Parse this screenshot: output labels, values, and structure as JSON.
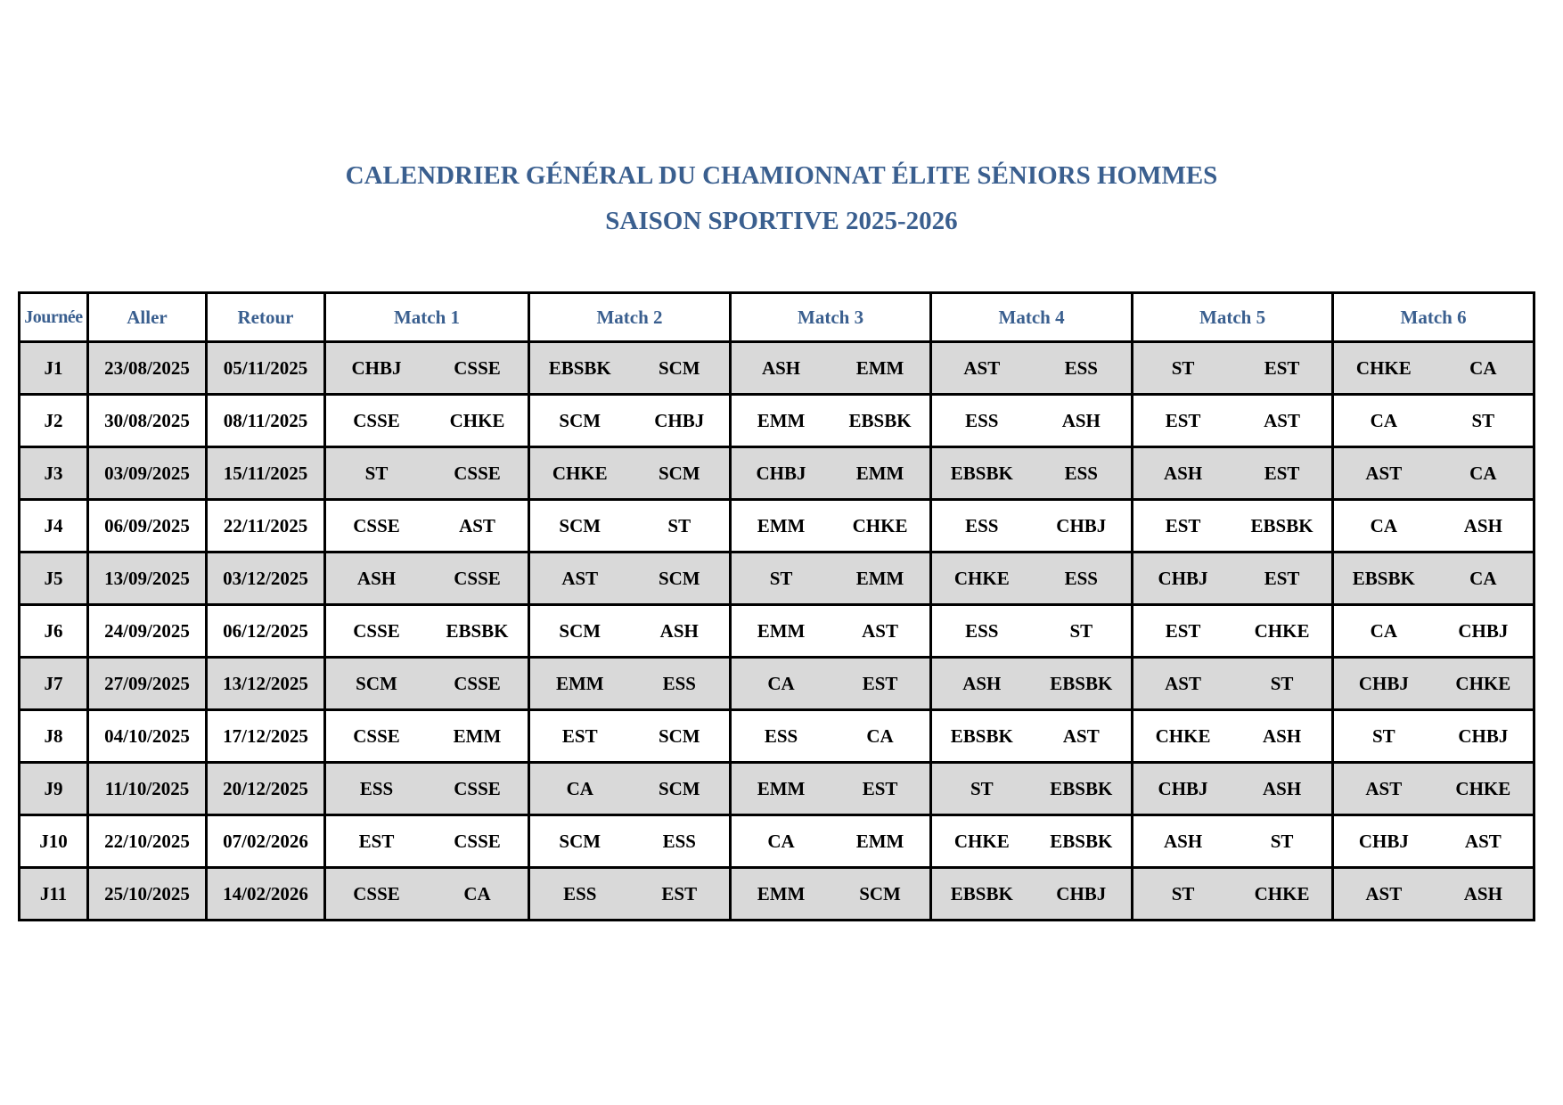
{
  "title": {
    "line1": "CALENDRIER GÉNÉRAL DU CHAMIONNAT ÉLITE SÉNIORS HOMMES",
    "line2": "SAISON SPORTIVE 2025-2026"
  },
  "headers": [
    "Journée",
    "Aller",
    "Retour",
    "Match 1",
    "Match 2",
    "Match 3",
    "Match 4",
    "Match 5",
    "Match 6"
  ],
  "rows": [
    {
      "j": "J1",
      "aller": "23/08/2025",
      "retour": "05/11/2025",
      "teams": [
        "CHBJ",
        "CSSE",
        "EBSBK",
        "SCM",
        "ASH",
        "EMM",
        "AST",
        "ESS",
        "ST",
        "EST",
        "CHKE",
        "CA"
      ]
    },
    {
      "j": "J2",
      "aller": "30/08/2025",
      "retour": "08/11/2025",
      "teams": [
        "CSSE",
        "CHKE",
        "SCM",
        "CHBJ",
        "EMM",
        "EBSBK",
        "ESS",
        "ASH",
        "EST",
        "AST",
        "CA",
        "ST"
      ]
    },
    {
      "j": "J3",
      "aller": "03/09/2025",
      "retour": "15/11/2025",
      "teams": [
        "ST",
        "CSSE",
        "CHKE",
        "SCM",
        "CHBJ",
        "EMM",
        "EBSBK",
        "ESS",
        "ASH",
        "EST",
        "AST",
        "CA"
      ]
    },
    {
      "j": "J4",
      "aller": "06/09/2025",
      "retour": "22/11/2025",
      "teams": [
        "CSSE",
        "AST",
        "SCM",
        "ST",
        "EMM",
        "CHKE",
        "ESS",
        "CHBJ",
        "EST",
        "EBSBK",
        "CA",
        "ASH"
      ]
    },
    {
      "j": "J5",
      "aller": "13/09/2025",
      "retour": "03/12/2025",
      "teams": [
        "ASH",
        "CSSE",
        "AST",
        "SCM",
        "ST",
        "EMM",
        "CHKE",
        "ESS",
        "CHBJ",
        "EST",
        "EBSBK",
        "CA"
      ]
    },
    {
      "j": "J6",
      "aller": "24/09/2025",
      "retour": "06/12/2025",
      "teams": [
        "CSSE",
        "EBSBK",
        "SCM",
        "ASH",
        "EMM",
        "AST",
        "ESS",
        "ST",
        "EST",
        "CHKE",
        "CA",
        "CHBJ"
      ]
    },
    {
      "j": "J7",
      "aller": "27/09/2025",
      "retour": "13/12/2025",
      "teams": [
        "SCM",
        "CSSE",
        "EMM",
        "ESS",
        "CA",
        "EST",
        "ASH",
        "EBSBK",
        "AST",
        "ST",
        "CHBJ",
        "CHKE"
      ]
    },
    {
      "j": "J8",
      "aller": "04/10/2025",
      "retour": "17/12/2025",
      "teams": [
        "CSSE",
        "EMM",
        "EST",
        "SCM",
        "ESS",
        "CA",
        "EBSBK",
        "AST",
        "CHKE",
        "ASH",
        "ST",
        "CHBJ"
      ]
    },
    {
      "j": "J9",
      "aller": "11/10/2025",
      "retour": "20/12/2025",
      "teams": [
        "ESS",
        "CSSE",
        "CA",
        "SCM",
        "EMM",
        "EST",
        "ST",
        "EBSBK",
        "CHBJ",
        "ASH",
        "AST",
        "CHKE"
      ]
    },
    {
      "j": "J10",
      "aller": "22/10/2025",
      "retour": "07/02/2026",
      "teams": [
        "EST",
        "CSSE",
        "SCM",
        "ESS",
        "CA",
        "EMM",
        "CHKE",
        "EBSBK",
        "ASH",
        "ST",
        "CHBJ",
        "AST"
      ]
    },
    {
      "j": "J11",
      "aller": "25/10/2025",
      "retour": "14/02/2026",
      "teams": [
        "CSSE",
        "CA",
        "ESS",
        "EST",
        "EMM",
        "SCM",
        "EBSBK",
        "CHBJ",
        "ST",
        "CHKE",
        "AST",
        "ASH"
      ]
    }
  ],
  "colors": {
    "heading": "#3a5f8f",
    "shaded_row": "#d9d9d9"
  }
}
